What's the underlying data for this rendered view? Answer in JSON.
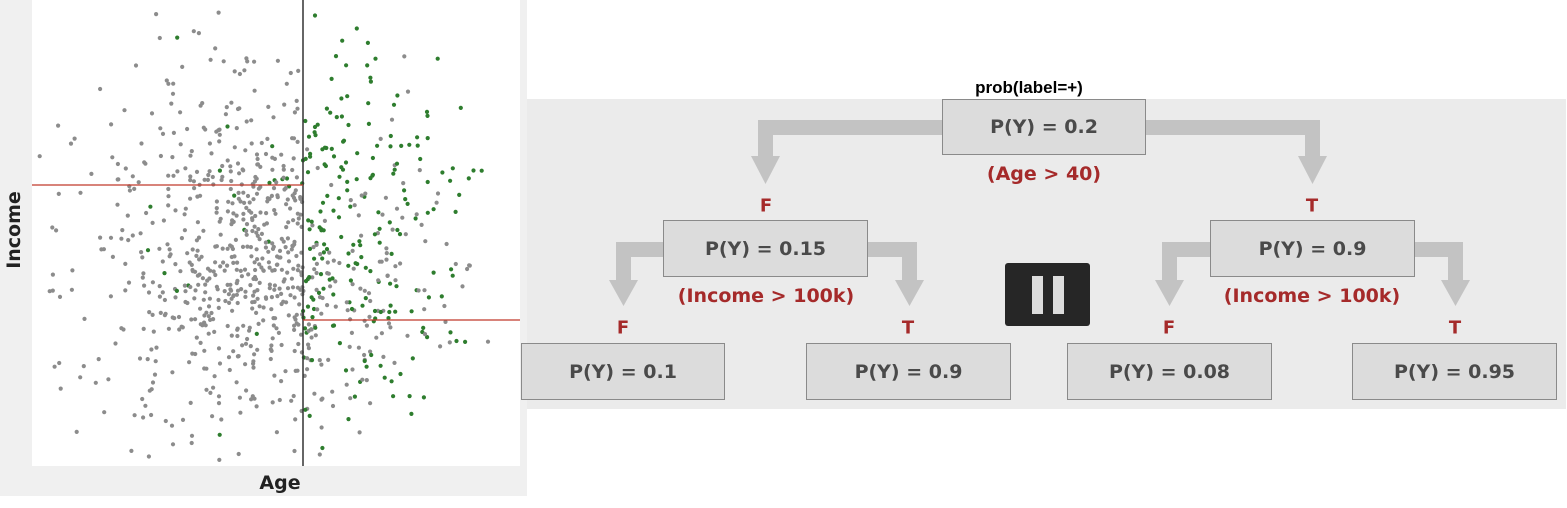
{
  "scatter": {
    "x_axis_label": "Age",
    "y_axis_label": "Income",
    "colors": {
      "negative": "#8c8c8c",
      "positive": "#2e7d2e",
      "split": "#c0392b",
      "divider": "#333333"
    }
  },
  "tree": {
    "title": "prob(label=+)",
    "root": {
      "prob": "P(Y) = 0.2",
      "condition": "(Age > 40)"
    },
    "left": {
      "branch": "F",
      "prob": "P(Y) = 0.15",
      "condition": "(Income > 100k)"
    },
    "right": {
      "branch": "T",
      "prob": "P(Y) = 0.9",
      "condition": "(Income > 100k)"
    },
    "leaf_ll": {
      "branch": "F",
      "prob": "P(Y) = 0.1"
    },
    "leaf_lr": {
      "branch": "T",
      "prob": "P(Y) = 0.9"
    },
    "leaf_rl": {
      "branch": "F",
      "prob": "P(Y) = 0.08"
    },
    "leaf_rr": {
      "branch": "T",
      "prob": "P(Y) = 0.95"
    },
    "colors": {
      "connector": "#c3c3c3",
      "condition_text": "#a52a2a",
      "node_fill": "#dcdcdc"
    }
  }
}
